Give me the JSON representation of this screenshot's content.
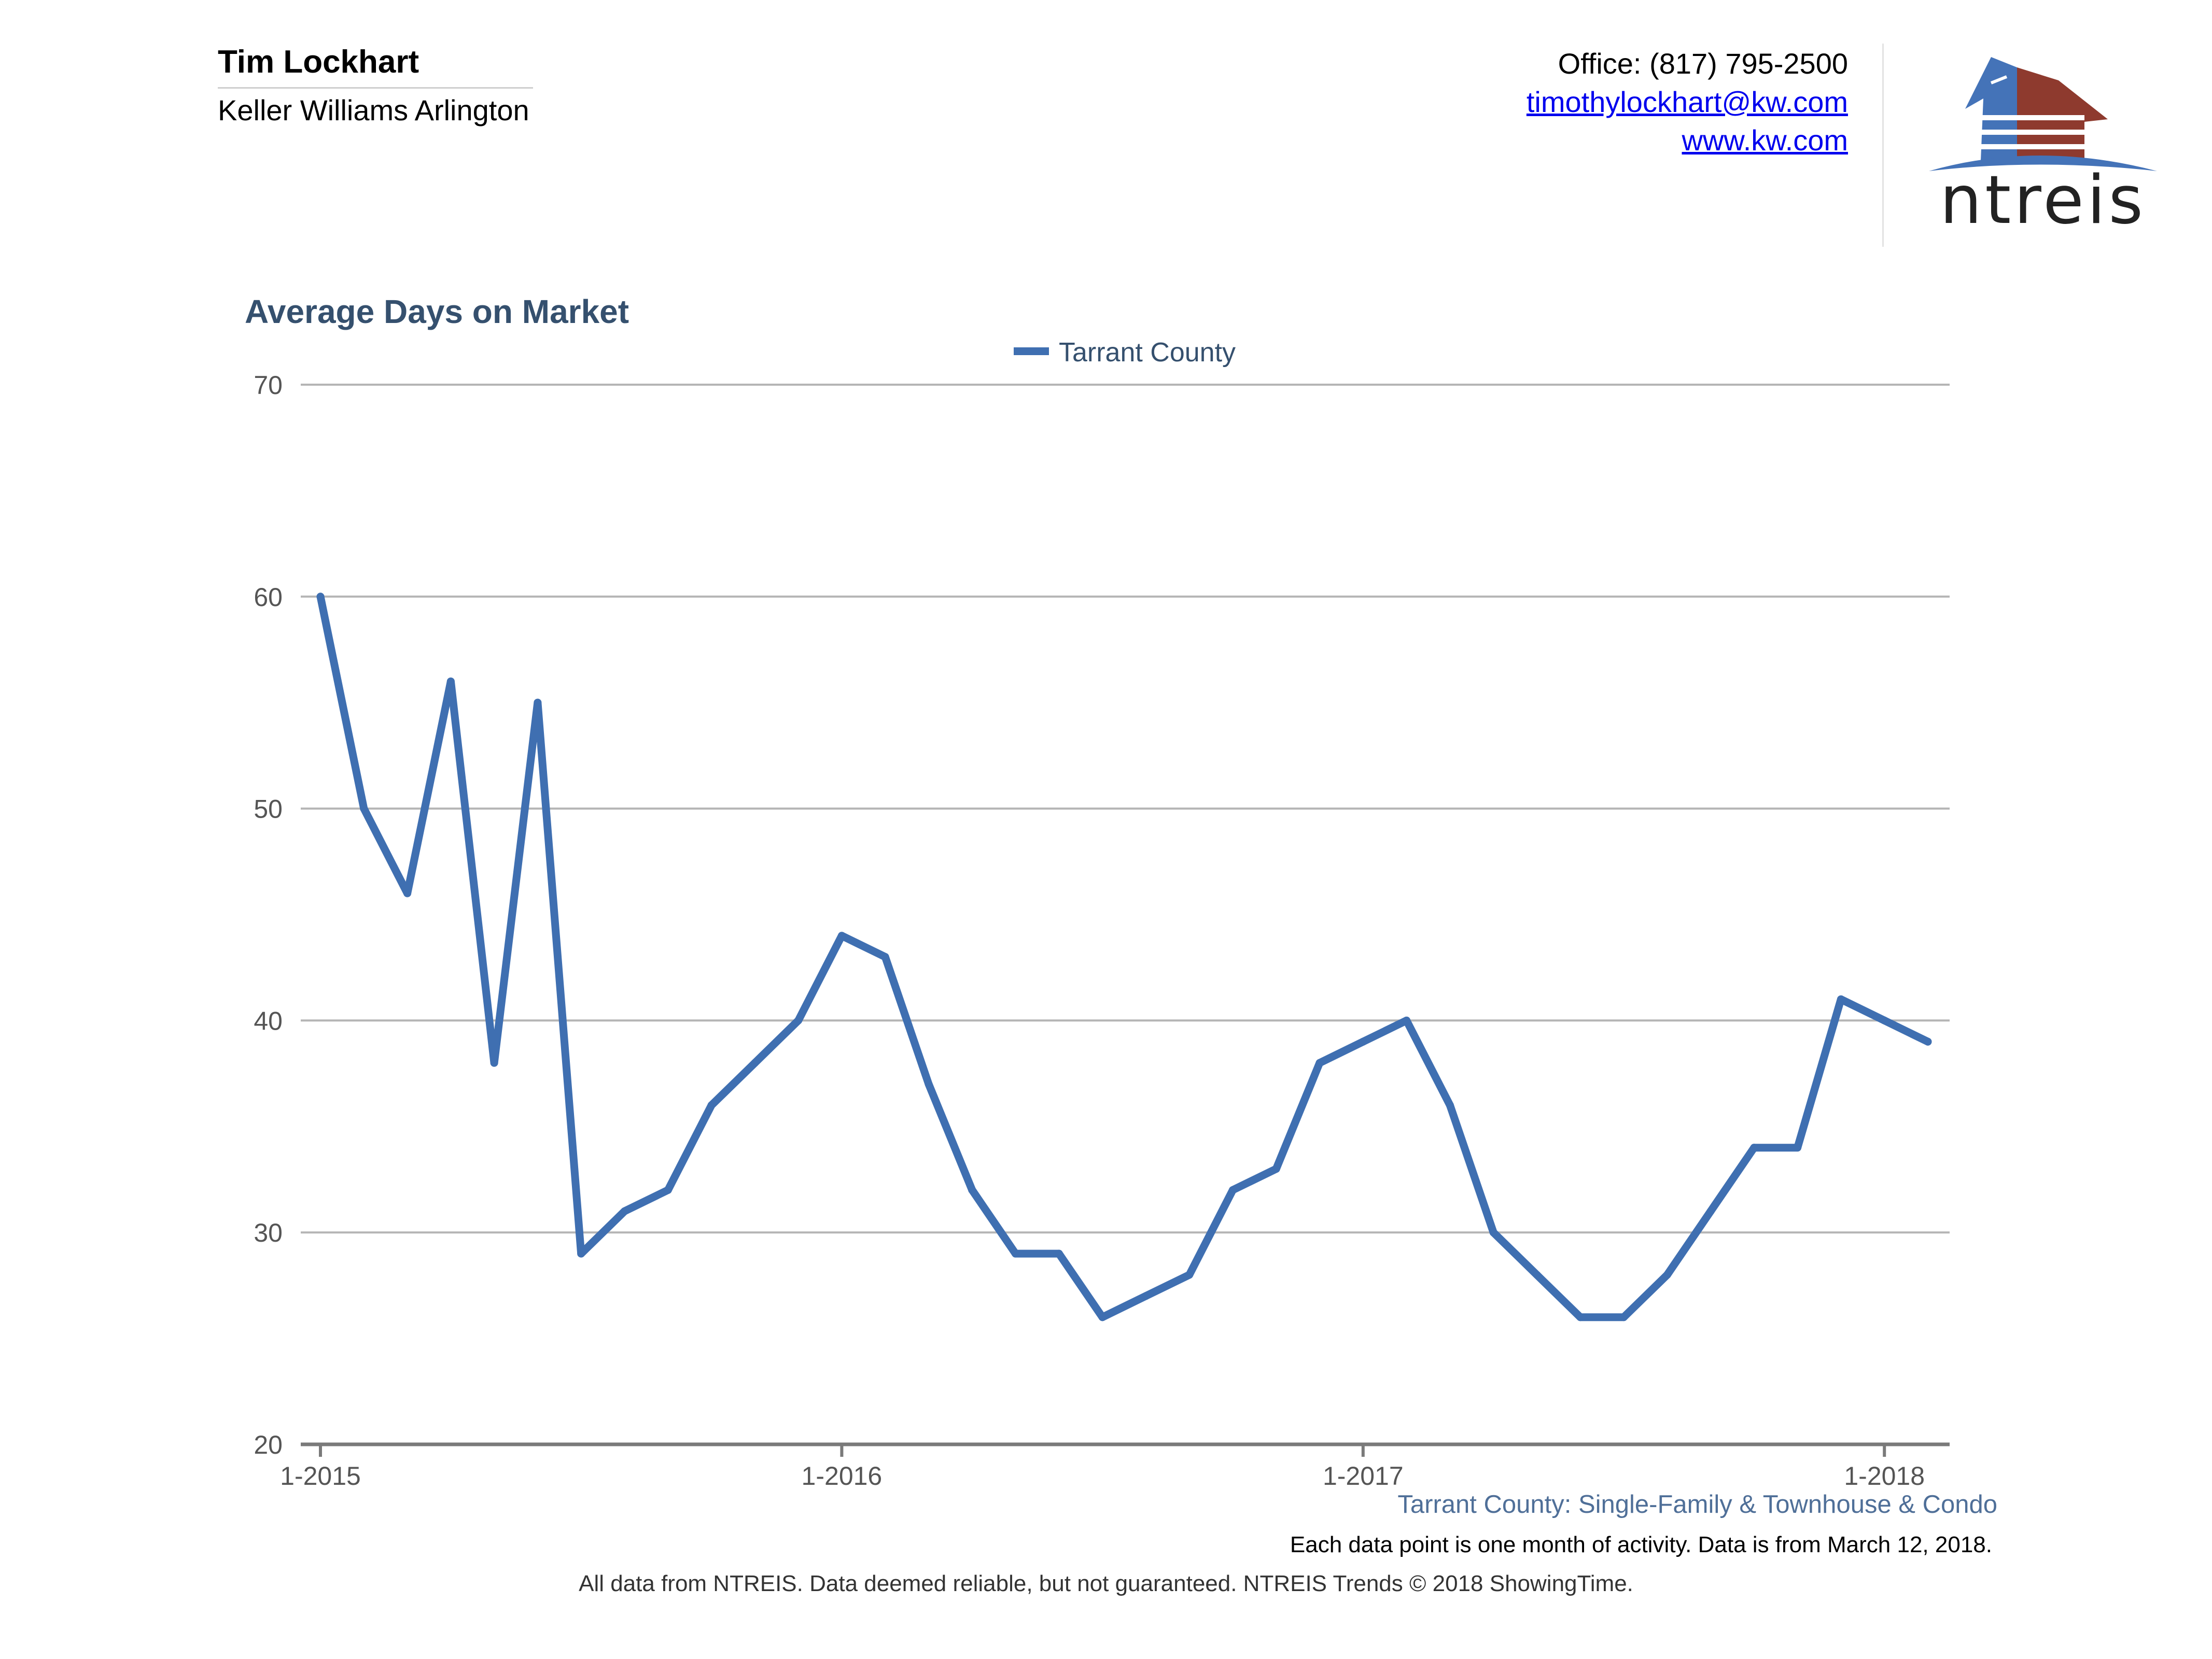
{
  "header": {
    "agent_name": "Tim Lockhart",
    "company": "Keller Williams Arlington",
    "office_phone": "Office: (817) 795-2500",
    "email": "timothylockhart@kw.com",
    "website": "www.kw.com",
    "logo_text": "ntreis"
  },
  "colors": {
    "series": "#3f6fb1",
    "title": "#35506e",
    "logo_blue": "#4473b8",
    "logo_red": "#8e3a2e",
    "grid": "#b5b5b5"
  },
  "chart_data": {
    "type": "line",
    "title": "Average Days on Market",
    "xlabel": "",
    "ylabel": "",
    "ylim": [
      20,
      70
    ],
    "yticks": [
      20,
      30,
      40,
      50,
      60,
      70
    ],
    "xticks": [
      {
        "label": "1-2015",
        "index": 0
      },
      {
        "label": "1-2016",
        "index": 12
      },
      {
        "label": "1-2017",
        "index": 24
      },
      {
        "label": "1-2018",
        "index": 36
      }
    ],
    "grid": true,
    "legend_position": "top-center",
    "series": [
      {
        "name": "Tarrant County",
        "values": [
          60,
          50,
          46,
          56,
          38,
          55,
          29,
          31,
          32,
          36,
          38,
          40,
          44,
          43,
          37,
          32,
          29,
          29,
          26,
          27,
          28,
          32,
          33,
          38,
          39,
          40,
          36,
          30,
          28,
          26,
          26,
          28,
          31,
          34,
          34,
          41,
          40,
          39
        ]
      }
    ]
  },
  "footer": {
    "series_note": "Tarrant County: Single-Family & Townhouse & Condo",
    "data_note": "Each data point is one month of activity. Data is from March 12, 2018.",
    "disclaimer": "All data from NTREIS. Data deemed reliable, but not guaranteed. NTREIS Trends © 2018 ShowingTime."
  }
}
